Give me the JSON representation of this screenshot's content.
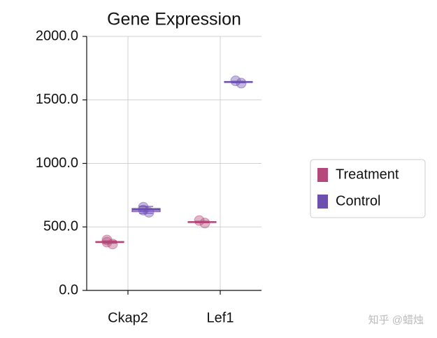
{
  "chart_data": {
    "type": "box",
    "title": "Gene Expression",
    "categories": [
      "Ckap2",
      "Lef1"
    ],
    "ylim": [
      0,
      2000
    ],
    "yticks": [
      {
        "value": 0,
        "label": "0.0"
      },
      {
        "value": 500,
        "label": "500.0"
      },
      {
        "value": 1000,
        "label": "1000.0"
      },
      {
        "value": 1500,
        "label": "1500.0"
      },
      {
        "value": 2000,
        "label": "2000.0"
      }
    ],
    "grid": true,
    "legend": "right",
    "series": [
      {
        "name": "Treatment",
        "color": "#b5487a",
        "boxes": [
          {
            "min": 372,
            "q1": 377,
            "median": 381,
            "q3": 385,
            "max": 390,
            "points": [
              397,
              365,
              380
            ]
          },
          {
            "min": 532,
            "q1": 535,
            "median": 538,
            "q3": 541,
            "max": 545,
            "points": [
              550,
              530
            ]
          }
        ]
      },
      {
        "name": "Control",
        "color": "#6d4fb0",
        "boxes": [
          {
            "min": 607,
            "q1": 620,
            "median": 634,
            "q3": 645,
            "max": 661,
            "points": [
              655,
              615,
              632
            ]
          },
          {
            "min": 1635,
            "q1": 1638,
            "median": 1641,
            "q3": 1644,
            "max": 1647,
            "points": [
              1650,
              1632
            ]
          }
        ]
      }
    ],
    "watermark": "知乎 @蜡烛"
  }
}
